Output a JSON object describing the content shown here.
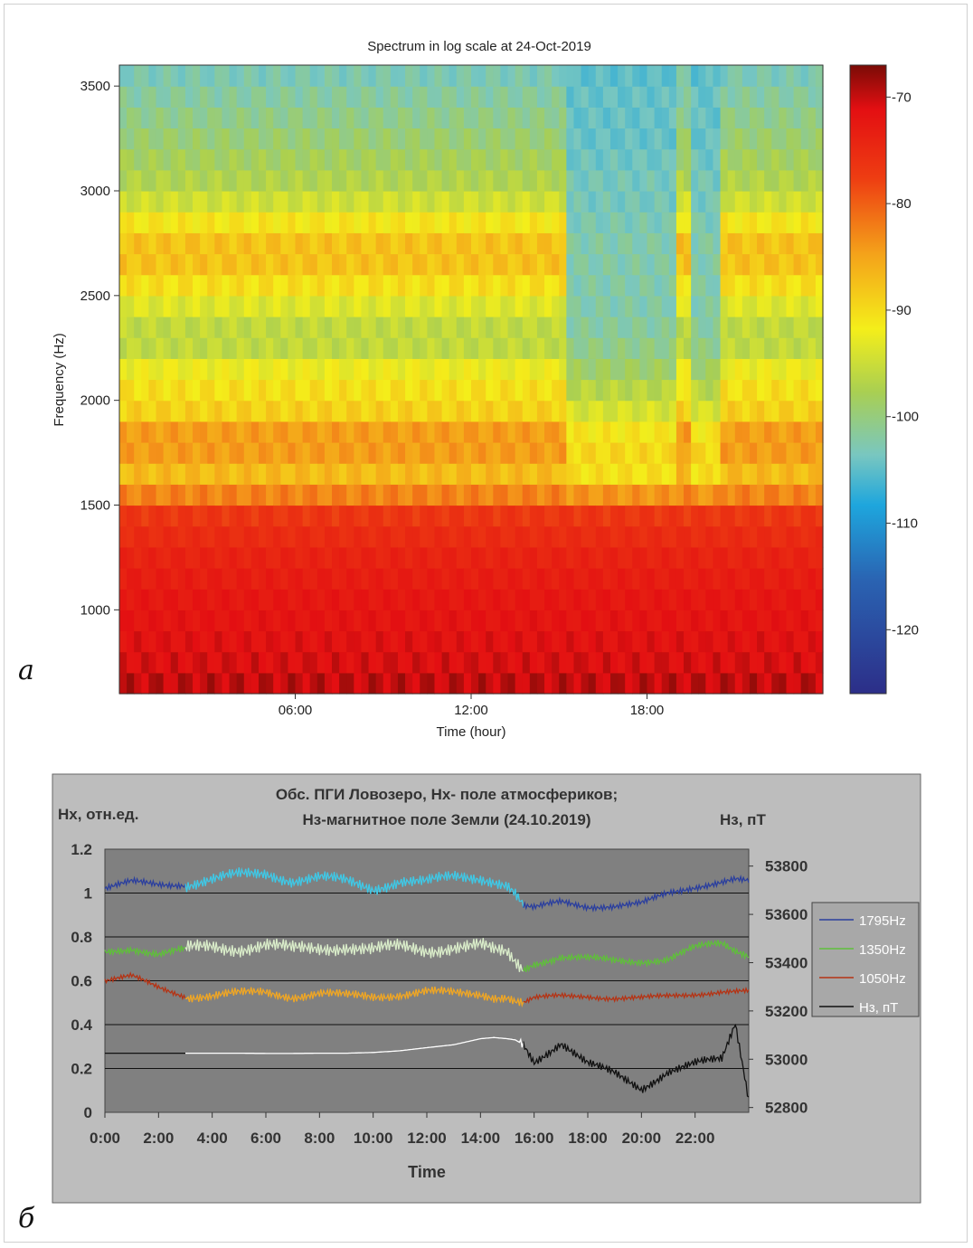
{
  "figure": {
    "panel_a_letter": "a",
    "panel_b_letter": "б"
  },
  "chart_data": [
    {
      "type": "heatmap",
      "title": "Spectrum in log scale at 24-Oct-2019",
      "xlabel": "Time (hour)",
      "ylabel": "Frequency (Hz)",
      "x_ticks": [
        "06:00",
        "12:00",
        "18:00"
      ],
      "x_tick_values_hours": [
        6,
        12,
        18
      ],
      "xlim_hours": [
        0,
        24
      ],
      "y_ticks": [
        "1000",
        "1500",
        "2000",
        "2500",
        "3000",
        "3500"
      ],
      "y_tick_values": [
        1000,
        1500,
        2000,
        2500,
        3000,
        3500
      ],
      "ylim": [
        600,
        3600
      ],
      "colorbar": {
        "ticks": [
          "-70",
          "-80",
          "-90",
          "-100",
          "-110",
          "-120"
        ],
        "tick_values": [
          -70,
          -80,
          -90,
          -100,
          -110,
          -120
        ],
        "range": [
          -126,
          -67
        ]
      },
      "time_hours": [
        0,
        1,
        2,
        3,
        4,
        5,
        6,
        7,
        8,
        9,
        10,
        11,
        12,
        13,
        14,
        15,
        16,
        17,
        18,
        19,
        20,
        21,
        22,
        23,
        24
      ],
      "frequency_hz": [
        600,
        700,
        800,
        900,
        1000,
        1100,
        1200,
        1300,
        1400,
        1500,
        1600,
        1700,
        1800,
        1900,
        2000,
        2100,
        2200,
        2300,
        2400,
        2500,
        2600,
        2700,
        2800,
        2900,
        3000,
        3100,
        3200,
        3300,
        3400,
        3500,
        3600
      ],
      "profile_day_db": [
        -68,
        -70,
        -70,
        -71,
        -71,
        -72,
        -73,
        -74,
        -76,
        -77,
        -85,
        -84,
        -81,
        -84,
        -88,
        -86,
        -91,
        -92,
        -91,
        -88,
        -86,
        -84,
        -86,
        -89,
        -92,
        -93,
        -94,
        -95,
        -96,
        -97,
        -98
      ],
      "profile_quiet_db": [
        -68,
        -70,
        -70,
        -71,
        -71,
        -72,
        -73,
        -74,
        -76,
        -77,
        -87,
        -87,
        -86,
        -89,
        -91,
        -93,
        -95,
        -96,
        -97,
        -97,
        -97,
        -97,
        -97,
        -98,
        -98,
        -98,
        -99,
        -99,
        -99,
        -99,
        -100
      ],
      "quiet_interval_hours": [
        [
          15.2,
          19.0
        ],
        [
          19.6,
          20.6
        ]
      ]
    },
    {
      "type": "line",
      "title_line1": "Обс. ПГИ Ловозеро, Нх- поле атмосфериков;",
      "title_line2": "Нз-магнитное поле Земли  (24.10.2019)",
      "ylabel_left": "Нх, отн.ед.",
      "ylabel_right": "Нз, пТ",
      "xlabel": "Time",
      "x_ticks": [
        "0:00",
        "2:00",
        "4:00",
        "6:00",
        "8:00",
        "10:00",
        "12:00",
        "14:00",
        "16:00",
        "18:00",
        "20:00",
        "22:00"
      ],
      "xlim_hours": [
        0,
        24
      ],
      "y_left_ticks": [
        "0",
        "0.2",
        "0.4",
        "0.6",
        "0.8",
        "1",
        "1.2"
      ],
      "ylim_left": [
        0,
        1.2
      ],
      "y_right_ticks": [
        "52800",
        "53000",
        "53200",
        "53400",
        "53600",
        "53800"
      ],
      "ylim_right": [
        52780,
        53870
      ],
      "time_hours": [
        0,
        1,
        2,
        3,
        4,
        5,
        6,
        7,
        8,
        9,
        10,
        11,
        12,
        13,
        14,
        14.5,
        15,
        15.3,
        15.6,
        16,
        17,
        18,
        19,
        20,
        21,
        22,
        23,
        23.5,
        24
      ],
      "series": [
        {
          "name": "1795Hz",
          "color": "#2b3f9e",
          "color_daytime": "#3ec8e6",
          "daytime_hours": [
            3,
            15.6
          ],
          "values": [
            1.02,
            1.05,
            1.04,
            1.04,
            1.06,
            1.08,
            1.09,
            1.06,
            1.07,
            1.05,
            1.02,
            1.06,
            1.05,
            1.07,
            1.07,
            1.06,
            1.04,
            1.0,
            0.94,
            0.93,
            0.96,
            0.94,
            0.94,
            0.95,
            1.0,
            1.03,
            1.05,
            1.06,
            1.05
          ]
        },
        {
          "name": "1350Hz",
          "color": "#5fbf3a",
          "color_daytime": "#d9ecc9",
          "daytime_hours": [
            3,
            15.6
          ],
          "values": [
            0.73,
            0.75,
            0.72,
            0.74,
            0.76,
            0.75,
            0.76,
            0.74,
            0.75,
            0.76,
            0.74,
            0.75,
            0.74,
            0.76,
            0.76,
            0.73,
            0.72,
            0.68,
            0.65,
            0.68,
            0.71,
            0.7,
            0.69,
            0.69,
            0.7,
            0.75,
            0.77,
            0.74,
            0.72
          ]
        },
        {
          "name": "1050Hz",
          "color": "#b53314",
          "color_daytime": "#f0a623",
          "daytime_hours": [
            3,
            15.6
          ],
          "values": [
            0.6,
            0.62,
            0.57,
            0.53,
            0.53,
            0.54,
            0.55,
            0.53,
            0.54,
            0.53,
            0.53,
            0.54,
            0.55,
            0.54,
            0.54,
            0.53,
            0.53,
            0.51,
            0.5,
            0.52,
            0.53,
            0.53,
            0.52,
            0.52,
            0.53,
            0.54,
            0.55,
            0.55,
            0.55
          ]
        },
        {
          "name": "Нз, пТ",
          "color": "#111111",
          "color_daytime": "#ffffff",
          "daytime_hours": [
            3,
            15.6
          ],
          "axis": "right",
          "values": [
            53025,
            53025,
            53025,
            53025,
            53025,
            53025,
            53024,
            53024,
            53025,
            53025,
            53028,
            53035,
            53048,
            53060,
            53085,
            53090,
            53085,
            53080,
            53060,
            52990,
            53070,
            52980,
            52940,
            52880,
            52950,
            52980,
            53000,
            53150,
            52840
          ]
        }
      ],
      "legend_placement": "right"
    }
  ]
}
